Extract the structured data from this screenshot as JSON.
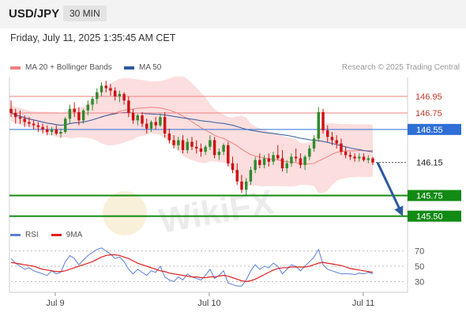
{
  "header": {
    "symbol": "USD/JPY",
    "timeframe": "30 MIN",
    "datetime": "Friday, July 11, 2025 1:35:45 AM CET"
  },
  "legend": {
    "ma20": {
      "label": "MA 20 + Bollinger Bands",
      "color": "#f08080"
    },
    "ma50": {
      "label": "MA 50",
      "color": "#2c5aa0"
    },
    "credit": "Research © 2025 Trading Central"
  },
  "rsi_legend": {
    "rsi": {
      "label": "RSI",
      "color": "#5b7fd8"
    },
    "ma9": {
      "label": "9MA",
      "color": "#e02020"
    }
  },
  "colors": {
    "up": "#2e8b2e",
    "down": "#cc1010",
    "band": "#fbd8d8",
    "resistance": "#f08080",
    "pivot": "#2f6fd6",
    "support": "#138a13",
    "arrow": "#2c5aa0"
  },
  "chart_data": {
    "type": "candlestick",
    "x_ticks": [
      "Jul 9",
      "Jul 10",
      "Jul 11"
    ],
    "ylim": [
      145.42,
      147.18
    ],
    "levels": [
      {
        "value": "146.95",
        "kind": "resistance"
      },
      {
        "value": "146.75",
        "kind": "resistance"
      },
      {
        "value": "146.55",
        "kind": "pivot"
      },
      {
        "value": "146.15",
        "kind": "last"
      },
      {
        "value": "145.75",
        "kind": "support"
      },
      {
        "value": "145.50",
        "kind": "support"
      }
    ],
    "ohlc": [
      [
        146.8,
        146.9,
        146.7,
        146.75
      ],
      [
        146.75,
        146.8,
        146.62,
        146.7
      ],
      [
        146.7,
        146.78,
        146.62,
        146.68
      ],
      [
        146.68,
        146.72,
        146.58,
        146.64
      ],
      [
        146.64,
        146.7,
        146.58,
        146.62
      ],
      [
        146.62,
        146.66,
        146.55,
        146.6
      ],
      [
        146.6,
        146.64,
        146.52,
        146.58
      ],
      [
        146.58,
        146.62,
        146.5,
        146.55
      ],
      [
        146.55,
        146.6,
        146.48,
        146.52
      ],
      [
        146.52,
        146.58,
        146.48,
        146.55
      ],
      [
        146.55,
        146.6,
        146.48,
        146.5
      ],
      [
        146.5,
        146.56,
        146.45,
        146.52
      ],
      [
        146.52,
        146.7,
        146.5,
        146.68
      ],
      [
        146.68,
        146.85,
        146.62,
        146.8
      ],
      [
        146.8,
        146.88,
        146.7,
        146.76
      ],
      [
        146.76,
        146.82,
        146.6,
        146.66
      ],
      [
        146.66,
        146.8,
        146.62,
        146.78
      ],
      [
        146.78,
        146.9,
        146.72,
        146.85
      ],
      [
        146.85,
        146.95,
        146.78,
        146.92
      ],
      [
        146.92,
        147.05,
        146.86,
        147.0
      ],
      [
        147.0,
        147.12,
        146.95,
        147.08
      ],
      [
        147.08,
        147.14,
        147.0,
        147.05
      ],
      [
        147.05,
        147.1,
        146.96,
        147.02
      ],
      [
        147.02,
        147.06,
        146.9,
        146.95
      ],
      [
        146.95,
        147.02,
        146.88,
        146.98
      ],
      [
        146.98,
        147.0,
        146.85,
        146.9
      ],
      [
        146.9,
        146.95,
        146.7,
        146.75
      ],
      [
        146.75,
        146.8,
        146.62,
        146.66
      ],
      [
        146.66,
        146.74,
        146.6,
        146.72
      ],
      [
        146.72,
        146.76,
        146.58,
        146.62
      ],
      [
        146.62,
        146.68,
        146.5,
        146.56
      ],
      [
        146.56,
        146.66,
        146.52,
        146.64
      ],
      [
        146.64,
        146.7,
        146.55,
        146.6
      ],
      [
        146.6,
        146.74,
        146.58,
        146.7
      ],
      [
        146.7,
        146.76,
        146.45,
        146.5
      ],
      [
        146.5,
        146.56,
        146.38,
        146.42
      ],
      [
        146.42,
        146.48,
        146.32,
        146.36
      ],
      [
        146.36,
        146.46,
        146.3,
        146.42
      ],
      [
        146.42,
        146.48,
        146.26,
        146.3
      ],
      [
        146.3,
        146.44,
        146.26,
        146.4
      ],
      [
        146.4,
        146.46,
        146.3,
        146.34
      ],
      [
        146.34,
        146.42,
        146.26,
        146.32
      ],
      [
        146.32,
        146.38,
        146.22,
        146.28
      ],
      [
        146.28,
        146.36,
        146.24,
        146.34
      ],
      [
        146.34,
        146.48,
        146.3,
        146.42
      ],
      [
        146.42,
        146.46,
        146.2,
        146.24
      ],
      [
        146.24,
        146.32,
        146.18,
        146.28
      ],
      [
        146.28,
        146.38,
        146.24,
        146.36
      ],
      [
        146.36,
        146.4,
        146.1,
        146.14
      ],
      [
        146.14,
        146.22,
        146.02,
        146.06
      ],
      [
        146.06,
        146.14,
        145.88,
        145.92
      ],
      [
        145.92,
        146.0,
        145.78,
        145.82
      ],
      [
        145.82,
        145.96,
        145.76,
        145.92
      ],
      [
        145.92,
        146.1,
        145.88,
        146.06
      ],
      [
        146.06,
        146.22,
        146.02,
        146.18
      ],
      [
        146.18,
        146.26,
        146.08,
        146.12
      ],
      [
        146.12,
        146.24,
        146.08,
        146.2
      ],
      [
        146.2,
        146.26,
        146.1,
        146.16
      ],
      [
        146.16,
        146.28,
        146.12,
        146.24
      ],
      [
        146.24,
        146.36,
        146.18,
        146.2
      ],
      [
        146.2,
        146.3,
        146.04,
        146.08
      ],
      [
        146.08,
        146.18,
        146.02,
        146.14
      ],
      [
        146.14,
        146.26,
        146.1,
        146.22
      ],
      [
        146.22,
        146.32,
        146.16,
        146.2
      ],
      [
        146.2,
        146.26,
        146.08,
        146.12
      ],
      [
        146.12,
        146.24,
        146.06,
        146.22
      ],
      [
        146.22,
        146.36,
        146.18,
        146.32
      ],
      [
        146.32,
        146.48,
        146.28,
        146.44
      ],
      [
        146.44,
        146.82,
        146.4,
        146.76
      ],
      [
        146.76,
        146.8,
        146.5,
        146.54
      ],
      [
        146.54,
        146.6,
        146.4,
        146.46
      ],
      [
        146.46,
        146.52,
        146.36,
        146.42
      ],
      [
        146.42,
        146.48,
        146.32,
        146.38
      ],
      [
        146.38,
        146.44,
        146.24,
        146.28
      ],
      [
        146.28,
        146.34,
        146.2,
        146.24
      ],
      [
        146.24,
        146.28,
        146.18,
        146.22
      ],
      [
        146.22,
        146.26,
        146.16,
        146.2
      ],
      [
        146.2,
        146.26,
        146.16,
        146.22
      ],
      [
        146.22,
        146.26,
        146.16,
        146.18
      ],
      [
        146.18,
        146.24,
        146.14,
        146.2
      ],
      [
        146.2,
        146.22,
        146.12,
        146.15
      ]
    ],
    "forecast": {
      "from": 146.15,
      "to": 145.5
    },
    "rsi": {
      "ylim": [
        20,
        80
      ],
      "ticks": [
        "70",
        "50",
        "30"
      ],
      "rsi": [
        60,
        54,
        50,
        46,
        48,
        44,
        42,
        40,
        38,
        44,
        40,
        42,
        56,
        64,
        60,
        52,
        58,
        64,
        68,
        72,
        74,
        70,
        66,
        60,
        62,
        56,
        46,
        40,
        46,
        42,
        38,
        44,
        42,
        50,
        36,
        32,
        30,
        36,
        32,
        40,
        36,
        34,
        32,
        38,
        46,
        34,
        38,
        44,
        28,
        26,
        24,
        24,
        32,
        44,
        52,
        46,
        50,
        48,
        54,
        50,
        40,
        46,
        52,
        50,
        44,
        50,
        56,
        62,
        72,
        52,
        46,
        44,
        42,
        40,
        40,
        40,
        39,
        41,
        40,
        42,
        40
      ],
      "ma9": [
        55,
        54,
        53,
        52,
        51,
        50,
        48,
        46,
        45,
        44,
        43,
        43,
        44,
        46,
        48,
        50,
        52,
        54,
        56,
        59,
        62,
        64,
        65,
        65,
        64,
        62,
        60,
        57,
        54,
        52,
        50,
        48,
        46,
        44,
        43,
        41,
        40,
        39,
        38,
        37,
        36,
        36,
        35,
        35,
        36,
        36,
        37,
        38,
        37,
        35,
        33,
        31,
        30,
        31,
        33,
        36,
        39,
        42,
        45,
        47,
        48,
        48,
        49,
        49,
        49,
        49,
        50,
        52,
        54,
        55,
        54,
        53,
        52,
        51,
        49,
        47,
        46,
        45,
        44,
        43,
        42
      ]
    }
  }
}
